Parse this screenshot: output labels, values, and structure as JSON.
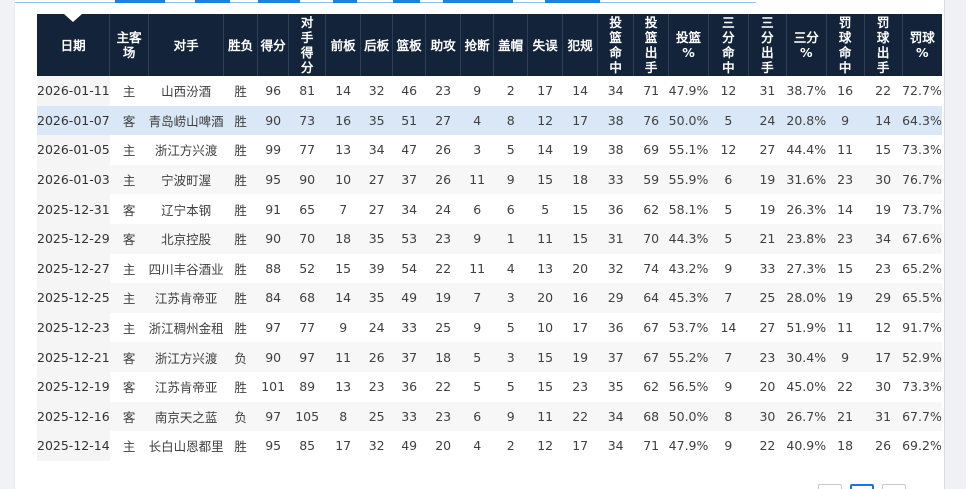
{
  "colors": {
    "header_bg": "#13243a",
    "header_text": "#ffffff",
    "accent_blue": "#1b82e2",
    "highlight_row_bg": "#d9e7f6",
    "stripe_row_bg": "#f7f7f8",
    "date_column_bg": "#f5f5f6",
    "pager_active_border": "#1a73e8"
  },
  "icons": {
    "date_sort": "caret-down-icon"
  },
  "table": {
    "columns": [
      {
        "key": "date",
        "label": "日期"
      },
      {
        "key": "venue",
        "label": "主客\n场"
      },
      {
        "key": "opponent",
        "label": "对手"
      },
      {
        "key": "result",
        "label": "胜负"
      },
      {
        "key": "pts",
        "label": "得分"
      },
      {
        "key": "opp_pts",
        "label": "对\n手\n得\n分"
      },
      {
        "key": "orb",
        "label": "前板"
      },
      {
        "key": "drb",
        "label": "后板"
      },
      {
        "key": "reb",
        "label": "篮板"
      },
      {
        "key": "ast",
        "label": "助攻"
      },
      {
        "key": "stl",
        "label": "抢断"
      },
      {
        "key": "blk",
        "label": "盖帽"
      },
      {
        "key": "tov",
        "label": "失误"
      },
      {
        "key": "pf",
        "label": "犯规"
      },
      {
        "key": "fgm",
        "label": "投\n篮\n命\n中"
      },
      {
        "key": "fga",
        "label": "投\n篮\n出\n手"
      },
      {
        "key": "fgp",
        "label": "投篮\n%"
      },
      {
        "key": "tpm",
        "label": "三\n分\n命\n中"
      },
      {
        "key": "tpa",
        "label": "三\n分\n出\n手"
      },
      {
        "key": "tpp",
        "label": "三分\n%"
      },
      {
        "key": "ftm",
        "label": "罚\n球\n命\n中"
      },
      {
        "key": "fta",
        "label": "罚\n球\n出\n手"
      },
      {
        "key": "ftp",
        "label": "罚球\n%"
      }
    ],
    "rows": [
      {
        "highlighted": false,
        "cells": [
          "2026-01-11",
          "主",
          "山西汾酒",
          "胜",
          "96",
          "81",
          "14",
          "32",
          "46",
          "23",
          "9",
          "2",
          "17",
          "14",
          "34",
          "71",
          "47.9%",
          "12",
          "31",
          "38.7%",
          "16",
          "22",
          "72.7%"
        ]
      },
      {
        "highlighted": true,
        "cells": [
          "2026-01-07",
          "客",
          "青岛崂山啤酒",
          "胜",
          "90",
          "73",
          "16",
          "35",
          "51",
          "27",
          "4",
          "8",
          "12",
          "17",
          "38",
          "76",
          "50.0%",
          "5",
          "24",
          "20.8%",
          "9",
          "14",
          "64.3%"
        ]
      },
      {
        "highlighted": false,
        "cells": [
          "2026-01-05",
          "主",
          "浙江方兴渡",
          "胜",
          "99",
          "77",
          "13",
          "34",
          "47",
          "26",
          "3",
          "5",
          "14",
          "19",
          "38",
          "69",
          "55.1%",
          "12",
          "27",
          "44.4%",
          "11",
          "15",
          "73.3%"
        ]
      },
      {
        "highlighted": false,
        "cells": [
          "2026-01-03",
          "主",
          "宁波町渥",
          "胜",
          "95",
          "90",
          "10",
          "27",
          "37",
          "26",
          "11",
          "9",
          "15",
          "18",
          "33",
          "59",
          "55.9%",
          "6",
          "19",
          "31.6%",
          "23",
          "30",
          "76.7%"
        ]
      },
      {
        "highlighted": false,
        "cells": [
          "2025-12-31",
          "客",
          "辽宁本钢",
          "胜",
          "91",
          "65",
          "7",
          "27",
          "34",
          "24",
          "6",
          "6",
          "5",
          "15",
          "36",
          "62",
          "58.1%",
          "5",
          "19",
          "26.3%",
          "14",
          "19",
          "73.7%"
        ]
      },
      {
        "highlighted": false,
        "cells": [
          "2025-12-29",
          "客",
          "北京控股",
          "胜",
          "90",
          "70",
          "18",
          "35",
          "53",
          "23",
          "9",
          "1",
          "11",
          "15",
          "31",
          "70",
          "44.3%",
          "5",
          "21",
          "23.8%",
          "23",
          "34",
          "67.6%"
        ]
      },
      {
        "highlighted": false,
        "cells": [
          "2025-12-27",
          "主",
          "四川丰谷酒业",
          "胜",
          "88",
          "52",
          "15",
          "39",
          "54",
          "22",
          "11",
          "4",
          "13",
          "20",
          "32",
          "74",
          "43.2%",
          "9",
          "33",
          "27.3%",
          "15",
          "23",
          "65.2%"
        ]
      },
      {
        "highlighted": false,
        "cells": [
          "2025-12-25",
          "主",
          "江苏肯帝亚",
          "胜",
          "84",
          "68",
          "14",
          "35",
          "49",
          "19",
          "7",
          "3",
          "20",
          "16",
          "29",
          "64",
          "45.3%",
          "7",
          "25",
          "28.0%",
          "19",
          "29",
          "65.5%"
        ]
      },
      {
        "highlighted": false,
        "cells": [
          "2025-12-23",
          "主",
          "浙江稠州金租",
          "胜",
          "97",
          "77",
          "9",
          "24",
          "33",
          "25",
          "9",
          "5",
          "10",
          "17",
          "36",
          "67",
          "53.7%",
          "14",
          "27",
          "51.9%",
          "11",
          "12",
          "91.7%"
        ]
      },
      {
        "highlighted": false,
        "cells": [
          "2025-12-21",
          "客",
          "浙江方兴渡",
          "负",
          "90",
          "97",
          "11",
          "26",
          "37",
          "18",
          "5",
          "3",
          "15",
          "19",
          "37",
          "67",
          "55.2%",
          "7",
          "23",
          "30.4%",
          "9",
          "17",
          "52.9%"
        ]
      },
      {
        "highlighted": false,
        "cells": [
          "2025-12-19",
          "客",
          "江苏肯帝亚",
          "胜",
          "101",
          "89",
          "13",
          "23",
          "36",
          "22",
          "5",
          "5",
          "15",
          "23",
          "35",
          "62",
          "56.5%",
          "9",
          "20",
          "45.0%",
          "22",
          "30",
          "73.3%"
        ]
      },
      {
        "highlighted": false,
        "cells": [
          "2025-12-16",
          "客",
          "南京天之蓝",
          "负",
          "97",
          "105",
          "8",
          "25",
          "33",
          "23",
          "6",
          "9",
          "11",
          "22",
          "34",
          "68",
          "50.0%",
          "8",
          "30",
          "26.7%",
          "21",
          "31",
          "67.7%"
        ]
      },
      {
        "highlighted": false,
        "cells": [
          "2025-12-14",
          "主",
          "长白山恩都里",
          "胜",
          "95",
          "85",
          "17",
          "32",
          "49",
          "20",
          "4",
          "2",
          "12",
          "17",
          "34",
          "71",
          "47.9%",
          "9",
          "22",
          "40.9%",
          "18",
          "26",
          "69.2%"
        ]
      }
    ]
  },
  "pagination": {
    "button_count": 3,
    "active_index": 1
  }
}
